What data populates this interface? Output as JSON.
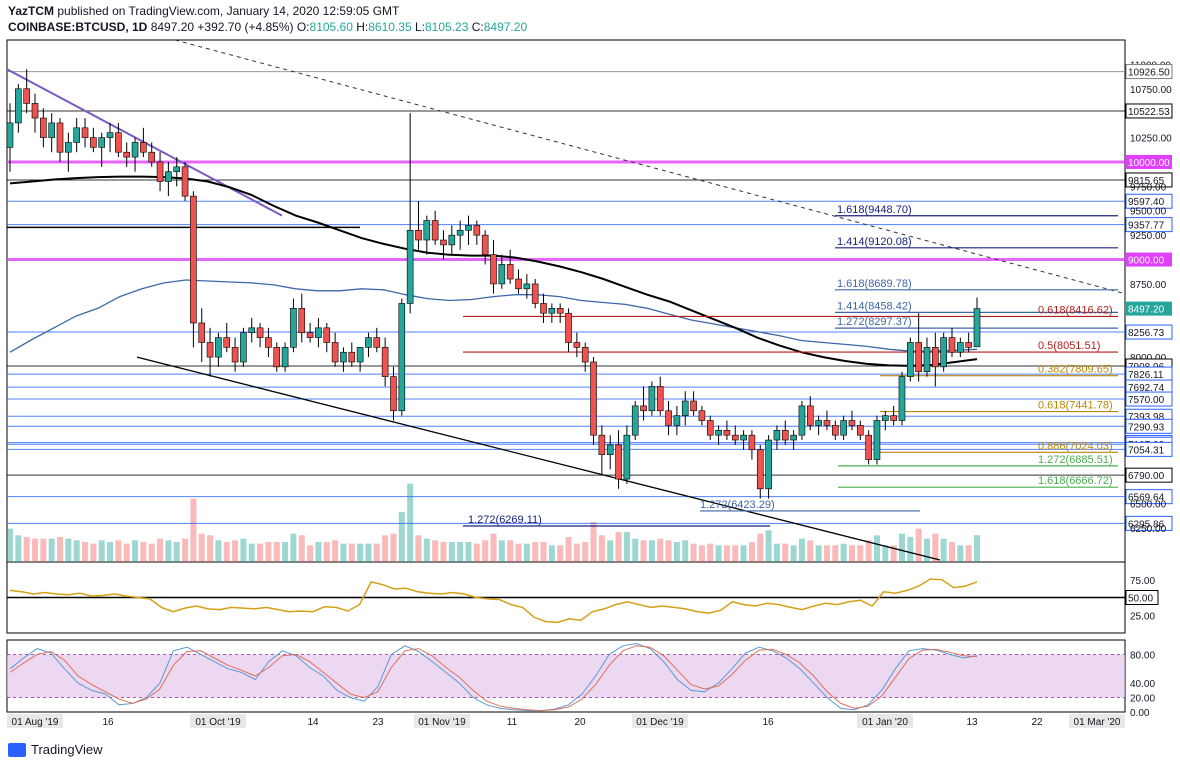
{
  "header": {
    "publisher": "YazTCM",
    "published_text": "published on TradingView.com, January 14, 2020 12:59:05 GMT",
    "symbol": "COINBASE:BTCUSD, 1D",
    "price": "8497.20",
    "change": "+392.70 (+4.85%)",
    "o_label": "O:",
    "o": "8105.60",
    "h_label": "H:",
    "h": "8610.35",
    "l_label": "L:",
    "l": "8105.23",
    "c_label": "C:",
    "c": "8497.20"
  },
  "footer": {
    "brand": "TradingView"
  },
  "colors": {
    "up": "#26a69a",
    "down": "#ef5350",
    "magenta": "#e040fb",
    "blue": "#2962ff",
    "orange": "#b8860b",
    "green": "#4caf50",
    "darkred": "#b71c1c",
    "ema": "#3f66a8",
    "rsi": "#d4a017",
    "stoch_k": "#5b9bd5",
    "stoch_d": "#e0705a",
    "stoch_band": "#e1bee7"
  },
  "chart_data": {
    "type": "candlestick",
    "ylim": [
      5900,
      11250
    ],
    "x_tick_labels": [
      "01 Aug '19",
      "16",
      "01 Oct '19",
      "14",
      "23",
      "01 Nov '19",
      "11",
      "20",
      "01 Dec '19",
      "16",
      "01 Jan '20",
      "13",
      "22",
      "01 Mar '20"
    ],
    "price_scale_labels": [
      "11000.00",
      "10926.50",
      "10750.00",
      "10522.53",
      "10250.00",
      "10000.00",
      "9815.65",
      "9750.00",
      "9597.40",
      "9500.00",
      "9357.77",
      "9250.00",
      "9000.00",
      "8750.00",
      "8497.20",
      "8256.73",
      "8000.00",
      "7908.96",
      "7826.11",
      "7692.74",
      "7570.00",
      "7393.98",
      "7290.93",
      "7123.94",
      "7107.03",
      "7054.31",
      "6790.00",
      "6569.64",
      "6500.00",
      "6295.86",
      "6250.00"
    ],
    "horizontal_levels": [
      {
        "price": 10926.5,
        "label": "10926.50",
        "color": "#7f7f7f"
      },
      {
        "price": 10522.53,
        "label": "10522.53",
        "color": "#000000"
      },
      {
        "price": 10000,
        "label": "10000.00",
        "color": "#e040fb"
      },
      {
        "price": 9815.65,
        "label": "9815.65",
        "color": "#000000"
      },
      {
        "price": 9597.4,
        "label": "9597.40",
        "color": "#2962ff"
      },
      {
        "price": 9357.77,
        "label": "9357.77",
        "color": "#2962ff"
      },
      {
        "price": 9000,
        "label": "9000.00",
        "color": "#e040fb"
      },
      {
        "price": 8256.73,
        "label": "8256.73",
        "color": "#2962ff"
      },
      {
        "price": 7908.96,
        "label": "7908.96",
        "color": "#000000"
      },
      {
        "price": 7826.11,
        "label": "7826.11",
        "color": "#2962ff"
      },
      {
        "price": 7692.74,
        "label": "7692.74",
        "color": "#2962ff"
      },
      {
        "price": 7570.0,
        "label": "7570.00",
        "color": "#2962ff"
      },
      {
        "price": 7393.98,
        "label": "7393.98",
        "color": "#2962ff"
      },
      {
        "price": 7290.93,
        "label": "7290.93",
        "color": "#2962ff"
      },
      {
        "price": 7123.94,
        "label": "7123.94",
        "color": "#2962ff"
      },
      {
        "price": 7107.03,
        "label": "7107.03",
        "color": "#2962ff"
      },
      {
        "price": 7054.31,
        "label": "7054.31",
        "color": "#2962ff"
      },
      {
        "price": 6790.0,
        "label": "6790.00",
        "color": "#000000"
      },
      {
        "price": 6569.64,
        "label": "6569.64",
        "color": "#2962ff"
      },
      {
        "price": 6295.86,
        "label": "6295.86",
        "color": "#2962ff"
      }
    ],
    "fib_levels": [
      {
        "text": "1.618(9448.70)",
        "price": 9448.7,
        "color": "#1a237e"
      },
      {
        "text": "1.414(9120.08)",
        "price": 9120.08,
        "color": "#1a237e"
      },
      {
        "text": "1.618(8689.78)",
        "price": 8689.78,
        "color": "#3f66a8"
      },
      {
        "text": "1.414(8458.42)",
        "price": 8458.42,
        "color": "#3f66a8"
      },
      {
        "text": "1.272(8297.37)",
        "price": 8297.37,
        "color": "#3f66a8"
      },
      {
        "text": "0.618(8416.62)",
        "price": 8416.62,
        "color": "#b71c1c"
      },
      {
        "text": "0.5(8051.51)",
        "price": 8051.51,
        "color": "#b71c1c"
      },
      {
        "text": "0.382(7809.65)",
        "price": 7809.65,
        "color": "#b8860b"
      },
      {
        "text": "0.618(7441.78)",
        "price": 7441.78,
        "color": "#b8860b"
      },
      {
        "text": "0.886(7024.03)",
        "price": 7024.03,
        "color": "#b8860b"
      },
      {
        "text": "1.272(6885.51)",
        "price": 6885.51,
        "color": "#4caf50"
      },
      {
        "text": "1.618(6666.72)",
        "price": 6666.72,
        "color": "#4caf50"
      },
      {
        "text": "1.272(6269.11)",
        "price": 6269.11,
        "color": "#1a237e"
      },
      {
        "text": "1.272(6423.29)",
        "price": 6423.29,
        "color": "#3f66a8"
      }
    ],
    "candles": [
      {
        "o": 10150,
        "h": 10600,
        "l": 9900,
        "c": 10400
      },
      {
        "o": 10400,
        "h": 10800,
        "l": 10300,
        "c": 10750
      },
      {
        "o": 10750,
        "h": 10950,
        "l": 10500,
        "c": 10600
      },
      {
        "o": 10600,
        "h": 10700,
        "l": 10300,
        "c": 10450
      },
      {
        "o": 10450,
        "h": 10550,
        "l": 10150,
        "c": 10250
      },
      {
        "o": 10250,
        "h": 10500,
        "l": 10100,
        "c": 10400
      },
      {
        "o": 10400,
        "h": 10450,
        "l": 10000,
        "c": 10100
      },
      {
        "o": 10100,
        "h": 10300,
        "l": 9900,
        "c": 10200
      },
      {
        "o": 10200,
        "h": 10450,
        "l": 10100,
        "c": 10350
      },
      {
        "o": 10350,
        "h": 10450,
        "l": 10150,
        "c": 10250
      },
      {
        "o": 10250,
        "h": 10350,
        "l": 10100,
        "c": 10150
      },
      {
        "o": 10150,
        "h": 10300,
        "l": 9950,
        "c": 10250
      },
      {
        "o": 10250,
        "h": 10400,
        "l": 10100,
        "c": 10300
      },
      {
        "o": 10300,
        "h": 10400,
        "l": 10050,
        "c": 10100
      },
      {
        "o": 10100,
        "h": 10200,
        "l": 9950,
        "c": 10050
      },
      {
        "o": 10050,
        "h": 10250,
        "l": 9900,
        "c": 10200
      },
      {
        "o": 10200,
        "h": 10350,
        "l": 10050,
        "c": 10100
      },
      {
        "o": 10100,
        "h": 10200,
        "l": 9950,
        "c": 10000
      },
      {
        "o": 10000,
        "h": 10100,
        "l": 9700,
        "c": 9800
      },
      {
        "o": 9800,
        "h": 10000,
        "l": 9650,
        "c": 9900
      },
      {
        "o": 9900,
        "h": 10050,
        "l": 9750,
        "c": 9950
      },
      {
        "o": 9950,
        "h": 10000,
        "l": 9600,
        "c": 9650
      },
      {
        "o": 9650,
        "h": 9700,
        "l": 8100,
        "c": 8350
      },
      {
        "o": 8350,
        "h": 8500,
        "l": 7950,
        "c": 8150
      },
      {
        "o": 8150,
        "h": 8300,
        "l": 7800,
        "c": 8000
      },
      {
        "o": 8000,
        "h": 8250,
        "l": 7900,
        "c": 8200
      },
      {
        "o": 8200,
        "h": 8350,
        "l": 8050,
        "c": 8100
      },
      {
        "o": 8100,
        "h": 8200,
        "l": 7850,
        "c": 7950
      },
      {
        "o": 7950,
        "h": 8300,
        "l": 7900,
        "c": 8250
      },
      {
        "o": 8250,
        "h": 8400,
        "l": 8150,
        "c": 8300
      },
      {
        "o": 8300,
        "h": 8350,
        "l": 8100,
        "c": 8200
      },
      {
        "o": 8200,
        "h": 8300,
        "l": 8000,
        "c": 8100
      },
      {
        "o": 8100,
        "h": 8150,
        "l": 7850,
        "c": 7900
      },
      {
        "o": 7900,
        "h": 8150,
        "l": 7850,
        "c": 8100
      },
      {
        "o": 8100,
        "h": 8600,
        "l": 8050,
        "c": 8500
      },
      {
        "o": 8500,
        "h": 8650,
        "l": 8150,
        "c": 8250
      },
      {
        "o": 8250,
        "h": 8350,
        "l": 8150,
        "c": 8200
      },
      {
        "o": 8200,
        "h": 8400,
        "l": 8100,
        "c": 8300
      },
      {
        "o": 8300,
        "h": 8350,
        "l": 8050,
        "c": 8150
      },
      {
        "o": 8150,
        "h": 8250,
        "l": 7900,
        "c": 7950
      },
      {
        "o": 7950,
        "h": 8100,
        "l": 7850,
        "c": 8050
      },
      {
        "o": 8050,
        "h": 8150,
        "l": 7900,
        "c": 7950
      },
      {
        "o": 7950,
        "h": 8100,
        "l": 7850,
        "c": 8100
      },
      {
        "o": 8100,
        "h": 8250,
        "l": 8000,
        "c": 8200
      },
      {
        "o": 8200,
        "h": 8300,
        "l": 8050,
        "c": 8100
      },
      {
        "o": 8100,
        "h": 8200,
        "l": 7700,
        "c": 7800
      },
      {
        "o": 7800,
        "h": 7900,
        "l": 7350,
        "c": 7450
      },
      {
        "o": 7450,
        "h": 8600,
        "l": 7400,
        "c": 8550
      },
      {
        "o": 8550,
        "h": 10500,
        "l": 8450,
        "c": 9300
      },
      {
        "o": 9300,
        "h": 9600,
        "l": 9100,
        "c": 9200
      },
      {
        "o": 9200,
        "h": 9450,
        "l": 9050,
        "c": 9400
      },
      {
        "o": 9400,
        "h": 9500,
        "l": 9150,
        "c": 9200
      },
      {
        "o": 9200,
        "h": 9300,
        "l": 9000,
        "c": 9150
      },
      {
        "o": 9150,
        "h": 9350,
        "l": 9050,
        "c": 9250
      },
      {
        "o": 9250,
        "h": 9400,
        "l": 9100,
        "c": 9300
      },
      {
        "o": 9300,
        "h": 9450,
        "l": 9150,
        "c": 9350
      },
      {
        "o": 9350,
        "h": 9400,
        "l": 9150,
        "c": 9250
      },
      {
        "o": 9250,
        "h": 9300,
        "l": 8950,
        "c": 9050
      },
      {
        "o": 9050,
        "h": 9200,
        "l": 8650,
        "c": 8750
      },
      {
        "o": 8750,
        "h": 9050,
        "l": 8700,
        "c": 8950
      },
      {
        "o": 8950,
        "h": 9100,
        "l": 8750,
        "c": 8800
      },
      {
        "o": 8800,
        "h": 8900,
        "l": 8650,
        "c": 8700
      },
      {
        "o": 8700,
        "h": 8850,
        "l": 8600,
        "c": 8750
      },
      {
        "o": 8750,
        "h": 8800,
        "l": 8500,
        "c": 8550
      },
      {
        "o": 8550,
        "h": 8650,
        "l": 8350,
        "c": 8450
      },
      {
        "o": 8450,
        "h": 8550,
        "l": 8350,
        "c": 8500
      },
      {
        "o": 8500,
        "h": 8550,
        "l": 8350,
        "c": 8450
      },
      {
        "o": 8450,
        "h": 8500,
        "l": 8050,
        "c": 8150
      },
      {
        "o": 8150,
        "h": 8250,
        "l": 8000,
        "c": 8100
      },
      {
        "o": 8100,
        "h": 8150,
        "l": 7850,
        "c": 7950
      },
      {
        "o": 7950,
        "h": 8000,
        "l": 7100,
        "c": 7200
      },
      {
        "o": 7200,
        "h": 7300,
        "l": 6800,
        "c": 7000
      },
      {
        "o": 7000,
        "h": 7200,
        "l": 6850,
        "c": 7100
      },
      {
        "o": 7100,
        "h": 7250,
        "l": 6650,
        "c": 6750
      },
      {
        "o": 6750,
        "h": 7300,
        "l": 6700,
        "c": 7200
      },
      {
        "o": 7200,
        "h": 7550,
        "l": 7150,
        "c": 7500
      },
      {
        "o": 7500,
        "h": 7700,
        "l": 7350,
        "c": 7450
      },
      {
        "o": 7450,
        "h": 7750,
        "l": 7400,
        "c": 7700
      },
      {
        "o": 7700,
        "h": 7800,
        "l": 7400,
        "c": 7450
      },
      {
        "o": 7450,
        "h": 7550,
        "l": 7200,
        "c": 7300
      },
      {
        "o": 7300,
        "h": 7500,
        "l": 7200,
        "c": 7400
      },
      {
        "o": 7400,
        "h": 7650,
        "l": 7300,
        "c": 7550
      },
      {
        "o": 7550,
        "h": 7650,
        "l": 7400,
        "c": 7450
      },
      {
        "o": 7450,
        "h": 7500,
        "l": 7300,
        "c": 7350
      },
      {
        "o": 7350,
        "h": 7400,
        "l": 7150,
        "c": 7200
      },
      {
        "o": 7200,
        "h": 7300,
        "l": 7100,
        "c": 7250
      },
      {
        "o": 7250,
        "h": 7350,
        "l": 7150,
        "c": 7200
      },
      {
        "o": 7200,
        "h": 7300,
        "l": 7100,
        "c": 7150
      },
      {
        "o": 7150,
        "h": 7250,
        "l": 7050,
        "c": 7200
      },
      {
        "o": 7200,
        "h": 7250,
        "l": 6950,
        "c": 7050
      },
      {
        "o": 7050,
        "h": 7100,
        "l": 6550,
        "c": 6650
      },
      {
        "o": 6650,
        "h": 7200,
        "l": 6550,
        "c": 7150
      },
      {
        "o": 7150,
        "h": 7300,
        "l": 7050,
        "c": 7250
      },
      {
        "o": 7250,
        "h": 7350,
        "l": 7100,
        "c": 7150
      },
      {
        "o": 7150,
        "h": 7250,
        "l": 7050,
        "c": 7200
      },
      {
        "o": 7200,
        "h": 7550,
        "l": 7150,
        "c": 7500
      },
      {
        "o": 7500,
        "h": 7600,
        "l": 7250,
        "c": 7300
      },
      {
        "o": 7300,
        "h": 7400,
        "l": 7200,
        "c": 7350
      },
      {
        "o": 7350,
        "h": 7450,
        "l": 7250,
        "c": 7300
      },
      {
        "o": 7300,
        "h": 7350,
        "l": 7150,
        "c": 7200
      },
      {
        "o": 7200,
        "h": 7400,
        "l": 7150,
        "c": 7350
      },
      {
        "o": 7350,
        "h": 7450,
        "l": 7250,
        "c": 7300
      },
      {
        "o": 7300,
        "h": 7350,
        "l": 7150,
        "c": 7200
      },
      {
        "o": 7200,
        "h": 7250,
        "l": 6900,
        "c": 6950
      },
      {
        "o": 6950,
        "h": 7400,
        "l": 6900,
        "c": 7350
      },
      {
        "o": 7350,
        "h": 7450,
        "l": 7250,
        "c": 7400
      },
      {
        "o": 7400,
        "h": 7500,
        "l": 7300,
        "c": 7350
      },
      {
        "o": 7350,
        "h": 7850,
        "l": 7300,
        "c": 7800
      },
      {
        "o": 7800,
        "h": 8200,
        "l": 7750,
        "c": 8150
      },
      {
        "o": 8150,
        "h": 8450,
        "l": 7750,
        "c": 7850
      },
      {
        "o": 7850,
        "h": 8200,
        "l": 7800,
        "c": 8100
      },
      {
        "o": 8100,
        "h": 8250,
        "l": 7700,
        "c": 7900
      },
      {
        "o": 7900,
        "h": 8250,
        "l": 7850,
        "c": 8200
      },
      {
        "o": 8200,
        "h": 8300,
        "l": 8000,
        "c": 8050
      },
      {
        "o": 8050,
        "h": 8200,
        "l": 8000,
        "c": 8150
      },
      {
        "o": 8150,
        "h": 8250,
        "l": 8050,
        "c": 8100
      },
      {
        "o": 8105.6,
        "h": 8610.35,
        "l": 8105.23,
        "c": 8497.2
      }
    ],
    "ema_black": [
      9780,
      9800,
      9820,
      9835,
      9845,
      9850,
      9850,
      9845,
      9830,
      9800,
      9740,
      9660,
      9550,
      9450,
      9380,
      9300,
      9220,
      9160,
      9110,
      9070,
      9050,
      9040,
      9040,
      9020,
      8980,
      8930,
      8870,
      8800,
      8720,
      8640,
      8570,
      8480,
      8390,
      8300,
      8200,
      8120,
      8050,
      8000,
      7960,
      7930,
      7915,
      7910,
      7920,
      7950,
      7980
    ],
    "ema_blue": [
      8050,
      8180,
      8300,
      8420,
      8500,
      8620,
      8700,
      8760,
      8790,
      8780,
      8770,
      8760,
      8740,
      8700,
      8680,
      8680,
      8700,
      8690,
      8640,
      8600,
      8580,
      8590,
      8620,
      8640,
      8640,
      8620,
      8580,
      8560,
      8540,
      8500,
      8440,
      8380,
      8340,
      8300,
      8260,
      8220,
      8170,
      8150,
      8130,
      8110,
      8080,
      8060,
      8060,
      8070,
      8080
    ],
    "rsi_range": [
      0,
      100
    ],
    "rsi_ticks": [
      "75.00",
      "50.00",
      "25.00"
    ],
    "rsi": [
      60,
      58,
      55,
      57,
      55,
      54,
      56,
      52,
      53,
      55,
      52,
      50,
      48,
      36,
      30,
      35,
      38,
      34,
      33,
      36,
      35,
      34,
      36,
      33,
      30,
      31,
      30,
      37,
      36,
      31,
      40,
      72,
      68,
      62,
      63,
      58,
      56,
      55,
      57,
      55,
      50,
      48,
      47,
      40,
      36,
      22,
      16,
      15,
      20,
      18,
      30,
      34,
      40,
      44,
      40,
      36,
      38,
      36,
      34,
      30,
      28,
      32,
      44,
      40,
      38,
      42,
      40,
      36,
      33,
      38,
      42,
      40,
      44,
      46,
      38,
      58,
      56,
      60,
      66,
      76,
      75,
      64,
      66,
      72
    ],
    "stoch_range": [
      0,
      100
    ],
    "stoch_ticks": [
      "80.00",
      "40.00",
      "20.00",
      "0.00"
    ],
    "stoch_k": [
      60,
      75,
      88,
      82,
      60,
      40,
      30,
      25,
      10,
      12,
      20,
      40,
      85,
      90,
      80,
      70,
      60,
      55,
      45,
      70,
      85,
      78,
      62,
      50,
      30,
      20,
      15,
      35,
      80,
      92,
      84,
      70,
      55,
      40,
      20,
      10,
      5,
      3,
      2,
      2,
      4,
      10,
      25,
      50,
      80,
      92,
      95,
      88,
      70,
      45,
      30,
      28,
      40,
      60,
      82,
      90,
      85,
      75,
      60,
      40,
      20,
      5,
      3,
      10,
      30,
      60,
      85,
      88,
      86,
      80,
      75,
      78
    ],
    "stoch_d": [
      55,
      68,
      80,
      84,
      72,
      50,
      38,
      28,
      18,
      12,
      18,
      32,
      65,
      84,
      85,
      75,
      65,
      58,
      50,
      62,
      78,
      80,
      70,
      55,
      40,
      25,
      20,
      28,
      62,
      85,
      88,
      78,
      62,
      48,
      30,
      15,
      8,
      5,
      3,
      2,
      3,
      7,
      18,
      38,
      65,
      85,
      92,
      90,
      78,
      58,
      38,
      32,
      36,
      52,
      72,
      86,
      87,
      80,
      68,
      50,
      28,
      12,
      5,
      8,
      22,
      48,
      74,
      86,
      87,
      83,
      78,
      77
    ]
  }
}
